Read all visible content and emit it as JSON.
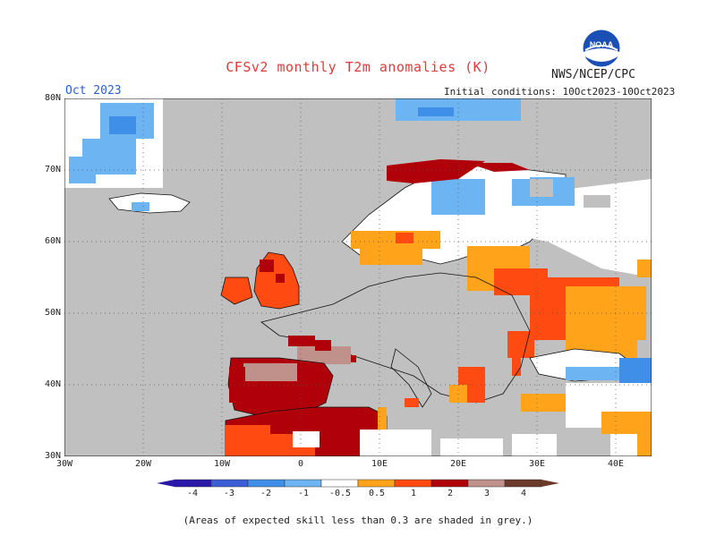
{
  "title": "CFSv2 monthly T2m anomalies (K)",
  "agency": "NWS/NCEP/CPC",
  "period": "Oct 2023",
  "initial_conditions": "Initial conditions: 10Oct2023-10Oct2023",
  "footnote": "(Areas of expected skill less than 0.3 are shaded in grey.)",
  "logo_text": "NOAA",
  "lat_labels": [
    "80N",
    "70N",
    "60N",
    "50N",
    "40N",
    "30N"
  ],
  "lon_labels": [
    "30W",
    "20W",
    "10W",
    "0",
    "10E",
    "20E",
    "30E",
    "40E"
  ],
  "colorbar": {
    "labels": [
      "-4",
      "-3",
      "-2",
      "-1",
      "-0.5",
      "0.5",
      "1",
      "2",
      "3",
      "4"
    ],
    "colors": [
      "#2a18a8",
      "#3c5fd7",
      "#3f8fe8",
      "#6cb4f2",
      "#ffffff",
      "#ffa31a",
      "#ff4a12",
      "#b0000a",
      "#c0918a",
      "#6b3a2a"
    ]
  },
  "map_colors": {
    "ocean": "#ffffff",
    "low_skill_grey": "#c0c0c0"
  }
}
